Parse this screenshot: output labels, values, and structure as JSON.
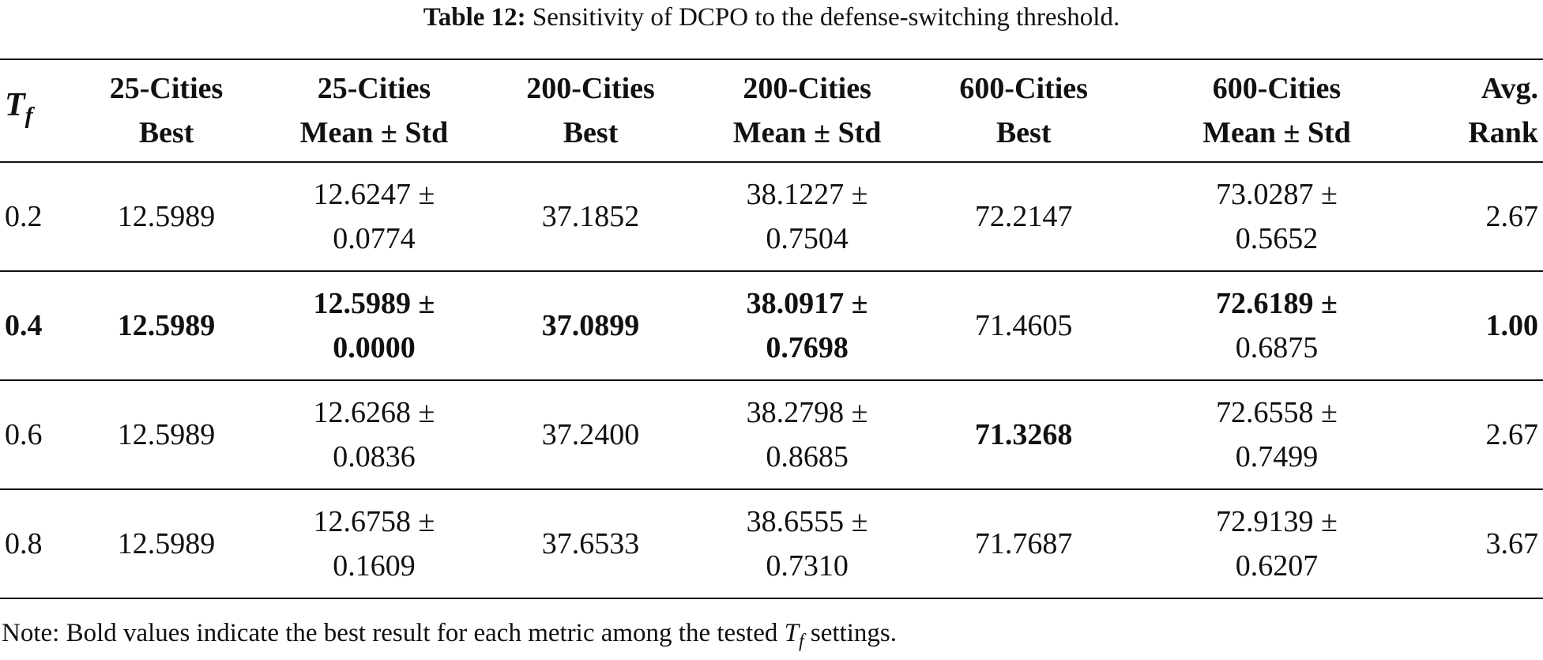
{
  "caption": {
    "label": "Table 12:",
    "text": "Sensitivity of DCPO to the defense-switching threshold."
  },
  "header": {
    "tf_symbol": "T",
    "tf_subscript": "f",
    "columns": [
      {
        "line1": "25-Cities",
        "line2": "Best"
      },
      {
        "line1": "25-Cities",
        "line2": "Mean ± Std"
      },
      {
        "line1": "200-Cities",
        "line2": "Best"
      },
      {
        "line1": "200-Cities",
        "line2": "Mean ± Std"
      },
      {
        "line1": "600-Cities",
        "line2": "Best"
      },
      {
        "line1": "600-Cities",
        "line2": "Mean ± Std"
      },
      {
        "line1": "Avg.",
        "line2": "Rank"
      }
    ]
  },
  "rows": [
    {
      "tf": "0.2",
      "c25_best": "12.5989",
      "c25_mean_l1": "12.6247 ±",
      "c25_mean_l2": "0.0774",
      "c200_best": "37.1852",
      "c200_mean_l1": "38.1227 ±",
      "c200_mean_l2": "0.7504",
      "c600_best": "72.2147",
      "c600_mean_l1": "73.0287 ±",
      "c600_mean_l2": "0.5652",
      "rank": "2.67"
    },
    {
      "tf": "0.4",
      "c25_best": "12.5989",
      "c25_mean_l1": "12.5989 ±",
      "c25_mean_l2": "0.0000",
      "c200_best": "37.0899",
      "c200_mean_l1": "38.0917 ±",
      "c200_mean_l2": "0.7698",
      "c600_best": "71.4605",
      "c600_mean_l1": "72.6189 ±",
      "c600_mean_l2": "0.6875",
      "rank": "1.00"
    },
    {
      "tf": "0.6",
      "c25_best": "12.5989",
      "c25_mean_l1": "12.6268 ±",
      "c25_mean_l2": "0.0836",
      "c200_best": "37.2400",
      "c200_mean_l1": "38.2798 ±",
      "c200_mean_l2": "0.8685",
      "c600_best": "71.3268",
      "c600_mean_l1": "72.6558 ±",
      "c600_mean_l2": "0.7499",
      "rank": "2.67"
    },
    {
      "tf": "0.8",
      "c25_best": "12.5989",
      "c25_mean_l1": "12.6758 ±",
      "c25_mean_l2": "0.1609",
      "c200_best": "37.6533",
      "c200_mean_l1": "38.6555 ±",
      "c200_mean_l2": "0.7310",
      "c600_best": "71.7687",
      "c600_mean_l1": "72.9139 ±",
      "c600_mean_l2": "0.6207",
      "rank": "3.67"
    }
  ],
  "note": {
    "before": "Note: Bold values indicate the best result for each metric among the tested",
    "symbol": "T",
    "subscript": "f",
    "after": "settings."
  }
}
